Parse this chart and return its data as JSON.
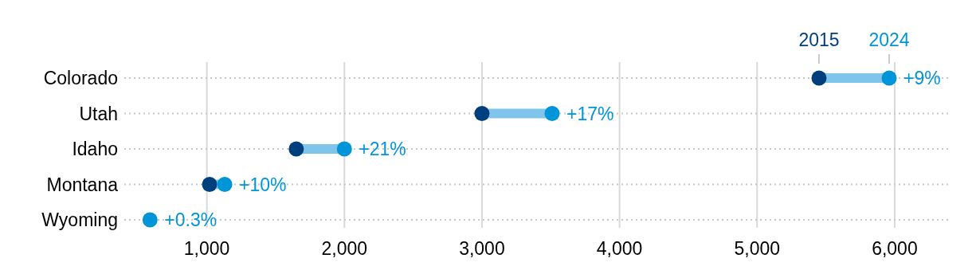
{
  "chart_data": {
    "type": "scatter",
    "orientation": "horizontal",
    "categories": [
      "Colorado",
      "Utah",
      "Idaho",
      "Montana",
      "Wyoming"
    ],
    "series": [
      {
        "name": "2015",
        "color": "#003f7d",
        "values": [
          5450,
          3000,
          1650,
          1020,
          null
        ]
      },
      {
        "name": "2024",
        "color": "#0095d9",
        "values": [
          5960,
          3510,
          2000,
          1130,
          587
        ]
      }
    ],
    "annotations": [
      {
        "text": "+9%",
        "x": 5960,
        "y": "Colorado"
      },
      {
        "text": "+17%",
        "x": 3510,
        "y": "Utah"
      },
      {
        "text": "+21%",
        "x": 2000,
        "y": "Idaho"
      },
      {
        "text": "+10%",
        "x": 1130,
        "y": "Montana"
      },
      {
        "text": "+0.3%",
        "x": 587,
        "y": "Wyoming"
      }
    ],
    "xlim": [
      400,
      6400
    ],
    "xticks": [
      {
        "value": 1000,
        "label": "1,000"
      },
      {
        "value": 2000,
        "label": "2,000"
      },
      {
        "value": 3000,
        "label": "3,000"
      },
      {
        "value": 4000,
        "label": "4,000"
      },
      {
        "value": 5000,
        "label": "5,000"
      },
      {
        "value": 6000,
        "label": "6,000"
      }
    ],
    "grid": true,
    "legend": false,
    "marker": "circle"
  }
}
